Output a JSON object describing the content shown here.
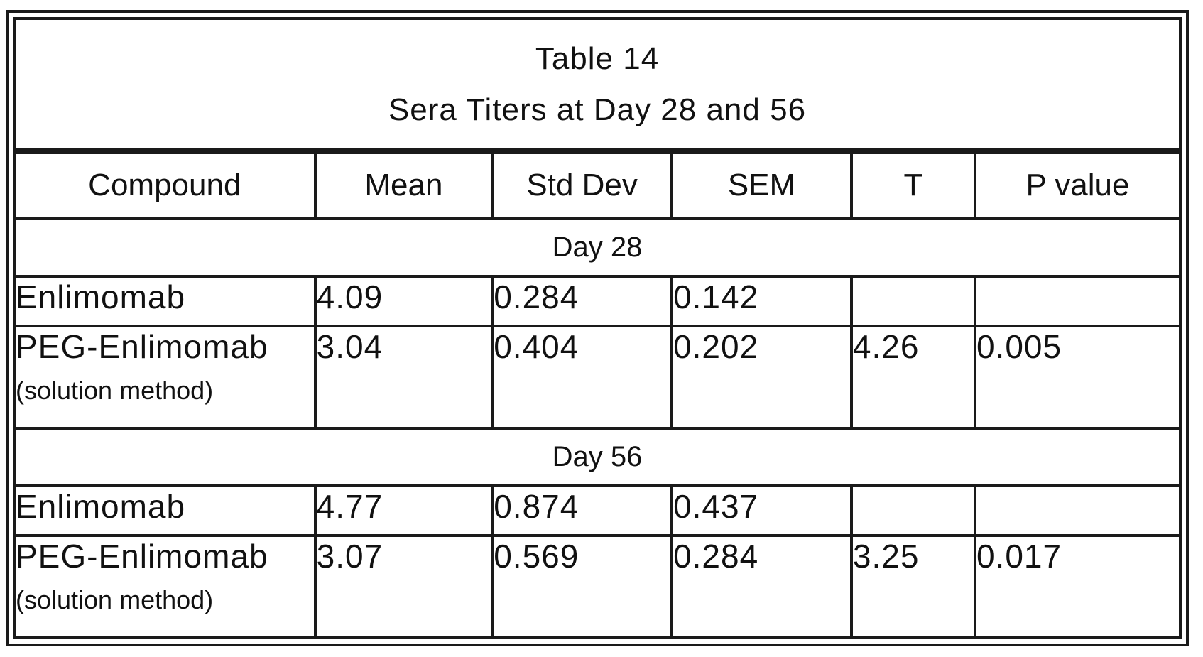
{
  "table": {
    "title": "Table 14",
    "subtitle": "Sera Titers at Day 28 and 56",
    "headers": [
      "Compound",
      "Mean",
      "Std Dev",
      "SEM",
      "T",
      "P value"
    ],
    "sections": [
      {
        "label": "Day 28",
        "rows": [
          {
            "compound": "Enlimomab",
            "sub": "",
            "mean": "4.09",
            "std_dev": "0.284",
            "sem": "0.142",
            "t": "",
            "p_value": ""
          },
          {
            "compound": "PEG-Enlimomab",
            "sub": "(solution method)",
            "mean": "3.04",
            "std_dev": "0.404",
            "sem": "0.202",
            "t": "4.26",
            "p_value": "0.005"
          }
        ]
      },
      {
        "label": "Day 56",
        "rows": [
          {
            "compound": "Enlimomab",
            "sub": "",
            "mean": "4.77",
            "std_dev": "0.874",
            "sem": "0.437",
            "t": "",
            "p_value": ""
          },
          {
            "compound": "PEG-Enlimomab",
            "sub": "(solution method)",
            "mean": "3.07",
            "std_dev": "0.569",
            "sem": "0.284",
            "t": "3.25",
            "p_value": "0.017"
          }
        ]
      }
    ]
  }
}
